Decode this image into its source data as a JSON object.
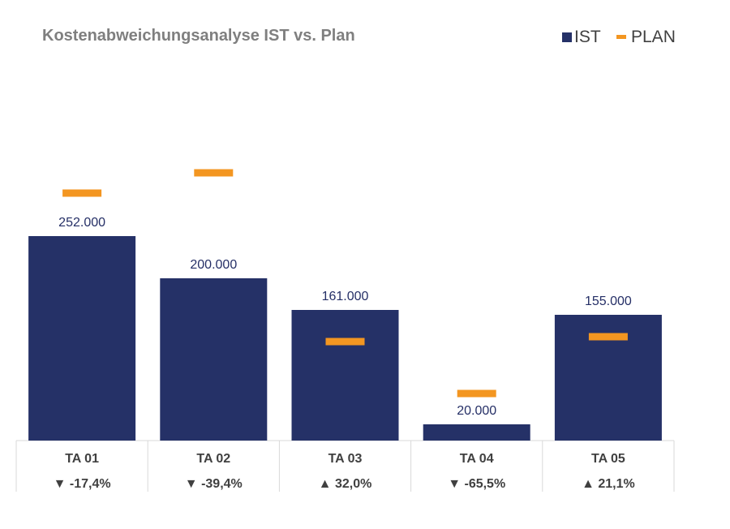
{
  "chart_data": {
    "type": "bar",
    "title": "Kostenabweichungsanalyse IST vs. Plan",
    "categories": [
      "TA 01",
      "TA 02",
      "TA 03",
      "TA 04",
      "TA 05"
    ],
    "series": [
      {
        "name": "IST",
        "values": [
          252000,
          200000,
          161000,
          20000,
          155000
        ],
        "color": "#253167"
      },
      {
        "name": "PLAN",
        "values": [
          305000,
          330000,
          122000,
          58000,
          128000
        ],
        "color": "#f39621"
      }
    ],
    "value_labels": [
      "252.000",
      "200.000",
      "161.000",
      "20.000",
      "155.000"
    ],
    "deviations": [
      "▼ -17,4%",
      "▼ -39,4%",
      "▲ 32,0%",
      "▼ -65,5%",
      "▲ 21,1%"
    ],
    "ylim": [
      0,
      345000
    ],
    "grid": false,
    "legend": "top-right"
  }
}
